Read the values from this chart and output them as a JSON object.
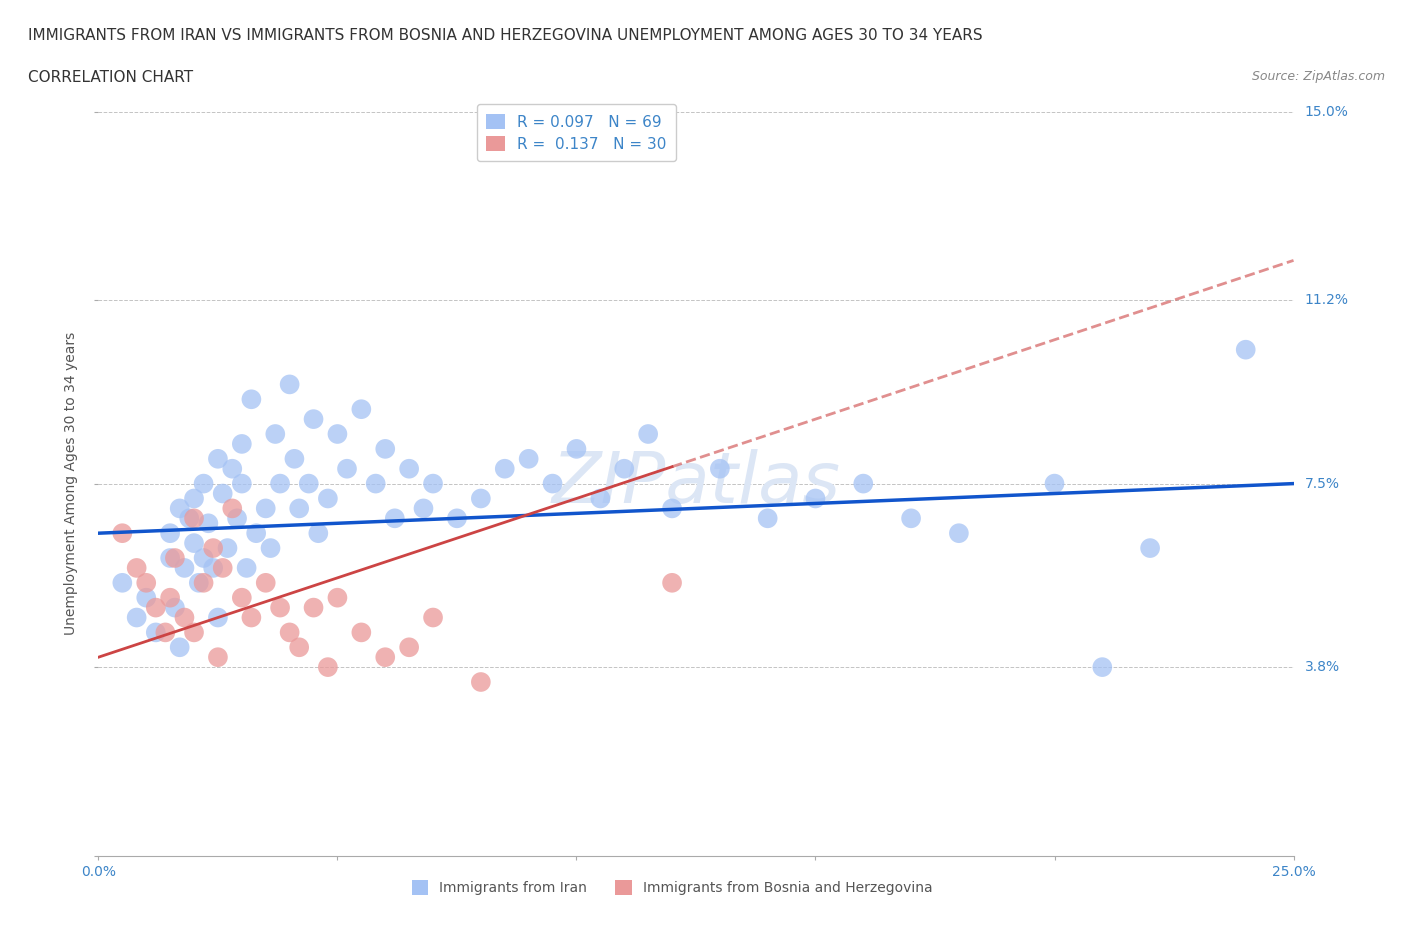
{
  "title_line1": "IMMIGRANTS FROM IRAN VS IMMIGRANTS FROM BOSNIA AND HERZEGOVINA UNEMPLOYMENT AMONG AGES 30 TO 34 YEARS",
  "title_line2": "CORRELATION CHART",
  "source_text": "Source: ZipAtlas.com",
  "ylabel": "Unemployment Among Ages 30 to 34 years",
  "xlim": [
    0.0,
    0.25
  ],
  "ylim": [
    0.0,
    0.15
  ],
  "iran_R": 0.097,
  "iran_N": 69,
  "bosnia_R": 0.137,
  "bosnia_N": 30,
  "iran_color": "#a4c2f4",
  "bosnia_color": "#ea9999",
  "trend_iran_color": "#1155cc",
  "trend_bosnia_color": "#cc4444",
  "background_color": "#ffffff",
  "grid_color": "#aaaaaa",
  "watermark_color": "#dce6f5",
  "title_fontsize": 11,
  "axis_label_fontsize": 10,
  "tick_fontsize": 10,
  "legend_fontsize": 11,
  "iran_x": [
    0.005,
    0.008,
    0.01,
    0.012,
    0.015,
    0.015,
    0.016,
    0.017,
    0.017,
    0.018,
    0.019,
    0.02,
    0.02,
    0.021,
    0.022,
    0.022,
    0.023,
    0.024,
    0.025,
    0.025,
    0.026,
    0.027,
    0.028,
    0.029,
    0.03,
    0.03,
    0.031,
    0.032,
    0.033,
    0.035,
    0.036,
    0.037,
    0.038,
    0.04,
    0.041,
    0.042,
    0.044,
    0.045,
    0.046,
    0.048,
    0.05,
    0.052,
    0.055,
    0.058,
    0.06,
    0.062,
    0.065,
    0.068,
    0.07,
    0.075,
    0.08,
    0.085,
    0.09,
    0.095,
    0.1,
    0.105,
    0.11,
    0.115,
    0.12,
    0.13,
    0.14,
    0.15,
    0.16,
    0.17,
    0.18,
    0.2,
    0.21,
    0.22,
    0.24
  ],
  "iran_y": [
    0.055,
    0.048,
    0.052,
    0.045,
    0.06,
    0.065,
    0.05,
    0.07,
    0.042,
    0.058,
    0.068,
    0.063,
    0.072,
    0.055,
    0.075,
    0.06,
    0.067,
    0.058,
    0.08,
    0.048,
    0.073,
    0.062,
    0.078,
    0.068,
    0.075,
    0.083,
    0.058,
    0.092,
    0.065,
    0.07,
    0.062,
    0.085,
    0.075,
    0.095,
    0.08,
    0.07,
    0.075,
    0.088,
    0.065,
    0.072,
    0.085,
    0.078,
    0.09,
    0.075,
    0.082,
    0.068,
    0.078,
    0.07,
    0.075,
    0.068,
    0.072,
    0.078,
    0.08,
    0.075,
    0.082,
    0.072,
    0.078,
    0.085,
    0.07,
    0.078,
    0.068,
    0.072,
    0.075,
    0.068,
    0.065,
    0.075,
    0.038,
    0.062,
    0.102
  ],
  "bosnia_x": [
    0.005,
    0.008,
    0.01,
    0.012,
    0.014,
    0.015,
    0.016,
    0.018,
    0.02,
    0.02,
    0.022,
    0.024,
    0.025,
    0.026,
    0.028,
    0.03,
    0.032,
    0.035,
    0.038,
    0.04,
    0.042,
    0.045,
    0.048,
    0.05,
    0.055,
    0.06,
    0.065,
    0.07,
    0.08,
    0.12
  ],
  "bosnia_y": [
    0.065,
    0.058,
    0.055,
    0.05,
    0.045,
    0.052,
    0.06,
    0.048,
    0.068,
    0.045,
    0.055,
    0.062,
    0.04,
    0.058,
    0.07,
    0.052,
    0.048,
    0.055,
    0.05,
    0.045,
    0.042,
    0.05,
    0.038,
    0.052,
    0.045,
    0.04,
    0.042,
    0.048,
    0.035,
    0.055
  ]
}
